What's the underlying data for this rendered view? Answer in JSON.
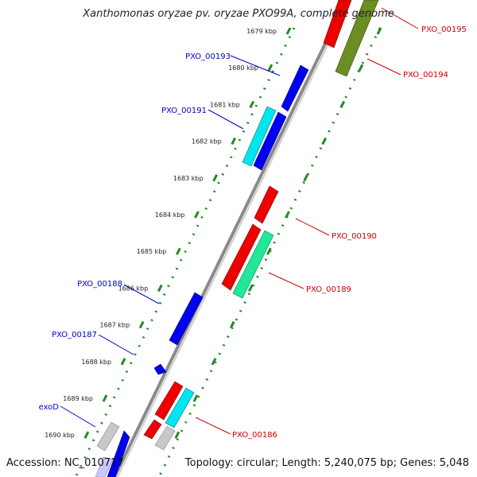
{
  "title": "Xanthomonas oryzae pv. oryzae PXO99A, complete genome",
  "accession": "Accession: NC_010717",
  "topology": "Topology: circular; Length: 5,240,075 bp; Genes: 5,048",
  "colors": {
    "backbone": "#8a8a8a",
    "ticks": "#228b22",
    "left_label": "#0000cc",
    "right_label": "#cc0000"
  },
  "ticks": [
    {
      "label": "1679 kbp",
      "kbp": 1679
    },
    {
      "label": "1680 kbp",
      "kbp": 1680
    },
    {
      "label": "1681 kbp",
      "kbp": 1681
    },
    {
      "label": "1682 kbp",
      "kbp": 1682
    },
    {
      "label": "1683 kbp",
      "kbp": 1683
    },
    {
      "label": "1684 kbp",
      "kbp": 1684
    },
    {
      "label": "1685 kbp",
      "kbp": 1685
    },
    {
      "label": "1686 kbp",
      "kbp": 1686
    },
    {
      "label": "1687 kbp",
      "kbp": 1687
    },
    {
      "label": "1688 kbp",
      "kbp": 1688
    },
    {
      "label": "1689 kbp",
      "kbp": 1689
    },
    {
      "label": "1690 kbp",
      "kbp": 1690
    }
  ],
  "gene_labels": {
    "left": [
      "PXO_00193",
      "PXO_00191",
      "PXO_00188",
      "PXO_00187",
      "exoD"
    ],
    "right": [
      "PXO_00195",
      "PXO_00194",
      "PXO_00190",
      "PXO_00189",
      "PXO_00186"
    ]
  },
  "genes": [
    {
      "strand": "minus",
      "ring": 1,
      "color": "#0000ee"
    },
    {
      "strand": "minus",
      "ring": 2,
      "color": "#00e5ee"
    },
    {
      "strand": "minus",
      "ring": 1,
      "color": "#0000ee"
    },
    {
      "strand": "minus",
      "ring": 1,
      "color": "#0000ee"
    },
    {
      "strand": "minus",
      "ring": 1,
      "color": "#0000ee"
    },
    {
      "strand": "minus",
      "ring": 1,
      "color": "#0000ee"
    },
    {
      "strand": "minus",
      "ring": 2,
      "color": "#c8c8c8"
    },
    {
      "strand": "plus",
      "ring": 1,
      "color": "#ee0000"
    },
    {
      "strand": "plus",
      "ring": 2,
      "color": "#6b8e23"
    },
    {
      "strand": "plus",
      "ring": 1,
      "color": "#ee0000"
    },
    {
      "strand": "plus",
      "ring": 1,
      "color": "#ee0000"
    },
    {
      "strand": "plus",
      "ring": 2,
      "color": "#20e89a"
    },
    {
      "strand": "plus",
      "ring": 1,
      "color": "#ee0000"
    },
    {
      "strand": "plus",
      "ring": 2,
      "color": "#00e5ee"
    },
    {
      "strand": "plus",
      "ring": 1,
      "color": "#ee0000"
    },
    {
      "strand": "plus",
      "ring": 2,
      "color": "#c8c8c8"
    }
  ]
}
